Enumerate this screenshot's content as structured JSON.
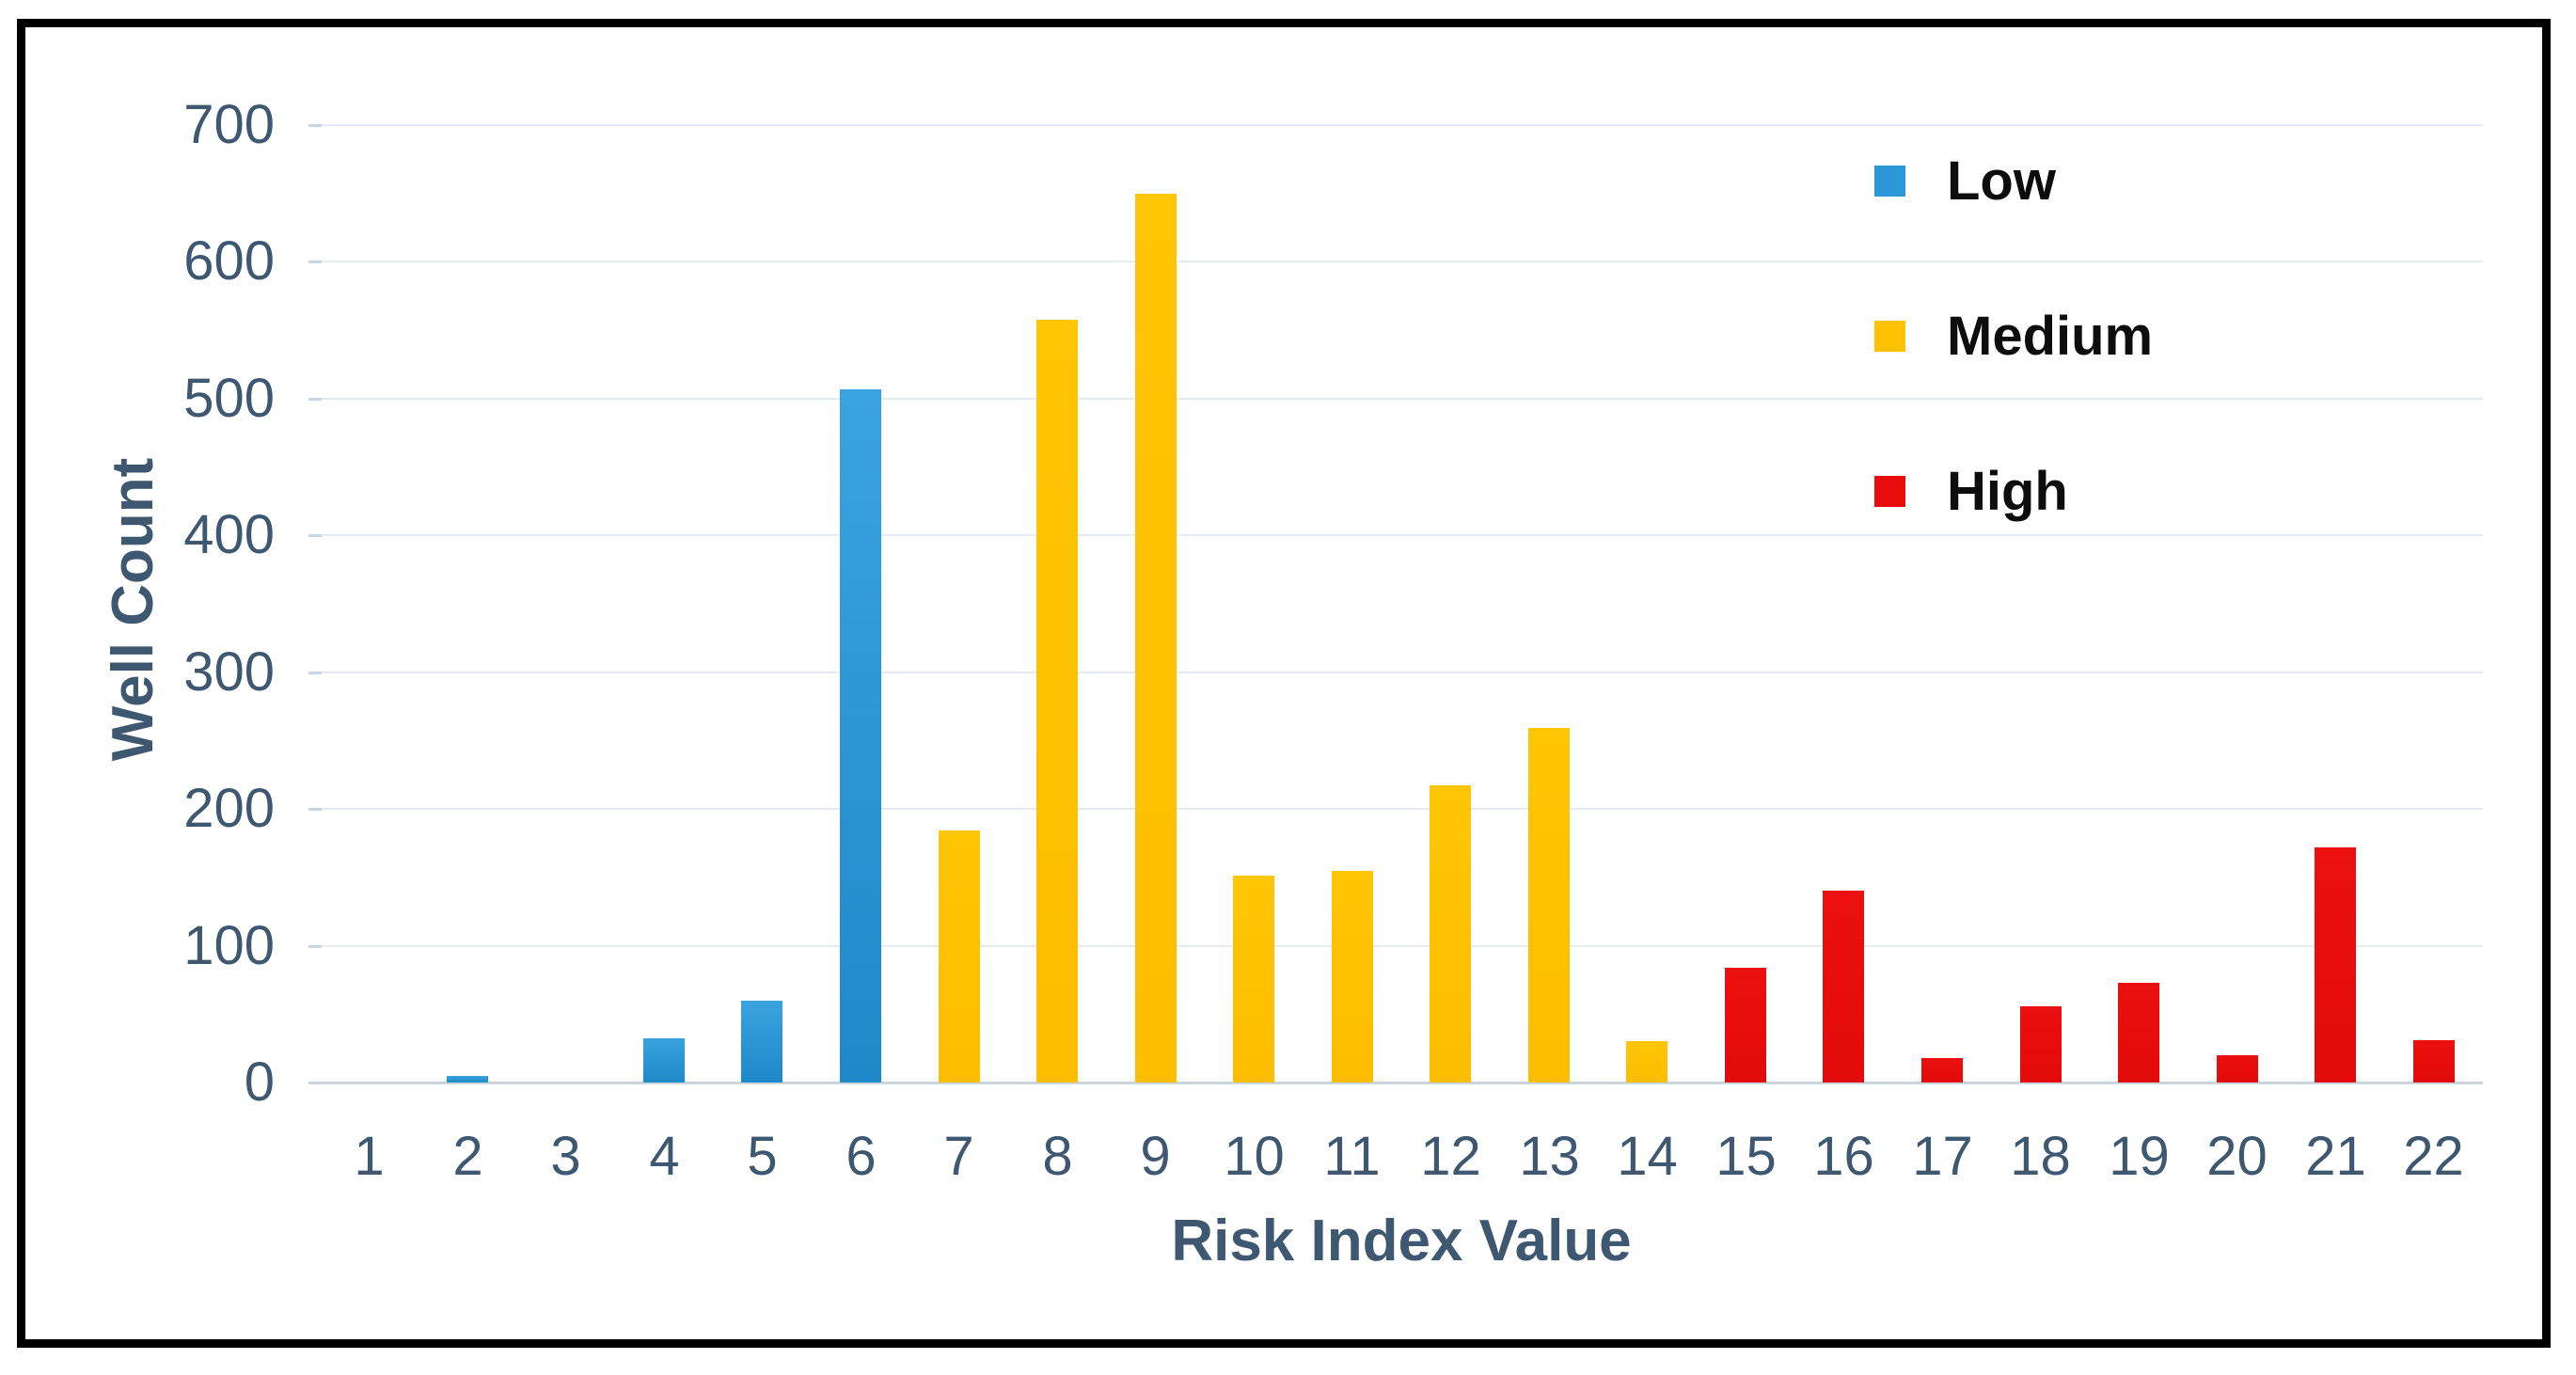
{
  "figure": {
    "background_color": "#ffffff",
    "frame_color": "#000000",
    "text_color": "#3e5872",
    "gridline_color": "#e4ebf2",
    "axisline_color": "#c9d6e2"
  },
  "chart_data": {
    "type": "bar",
    "title": "",
    "xlabel": "Risk Index Value",
    "ylabel": "Well Count",
    "categories": [
      "1",
      "2",
      "3",
      "4",
      "5",
      "6",
      "7",
      "8",
      "9",
      "10",
      "11",
      "12",
      "13",
      "14",
      "15",
      "16",
      "17",
      "18",
      "19",
      "20",
      "21",
      "22"
    ],
    "values": [
      0,
      5,
      0,
      32,
      60,
      507,
      184,
      558,
      650,
      151,
      155,
      217,
      259,
      30,
      84,
      140,
      18,
      56,
      73,
      20,
      172,
      31
    ],
    "groups": [
      "low",
      "low",
      "low",
      "low",
      "low",
      "low",
      "medium",
      "medium",
      "medium",
      "medium",
      "medium",
      "medium",
      "medium",
      "medium",
      "high",
      "high",
      "high",
      "high",
      "high",
      "high",
      "high",
      "high"
    ],
    "ylim": [
      0,
      700
    ],
    "y_ticks": [
      0,
      100,
      200,
      300,
      400,
      500,
      600,
      700
    ],
    "grid": "horizontal",
    "legend_position": "top-right",
    "series_colors": {
      "low": {
        "fill_top": "#3aa3df",
        "fill": "#1e88c9"
      },
      "medium": {
        "fill_top": "#ffc507",
        "fill": "#fdbd00"
      },
      "high": {
        "fill_top": "#ec1010",
        "fill": "#e20a0a"
      }
    }
  },
  "legend": {
    "items": [
      {
        "label": "Low",
        "group": "low",
        "color": "#2b97d7"
      },
      {
        "label": "Medium",
        "group": "medium",
        "color": "#fec103"
      },
      {
        "label": "High",
        "group": "high",
        "color": "#e80c0c"
      }
    ]
  }
}
